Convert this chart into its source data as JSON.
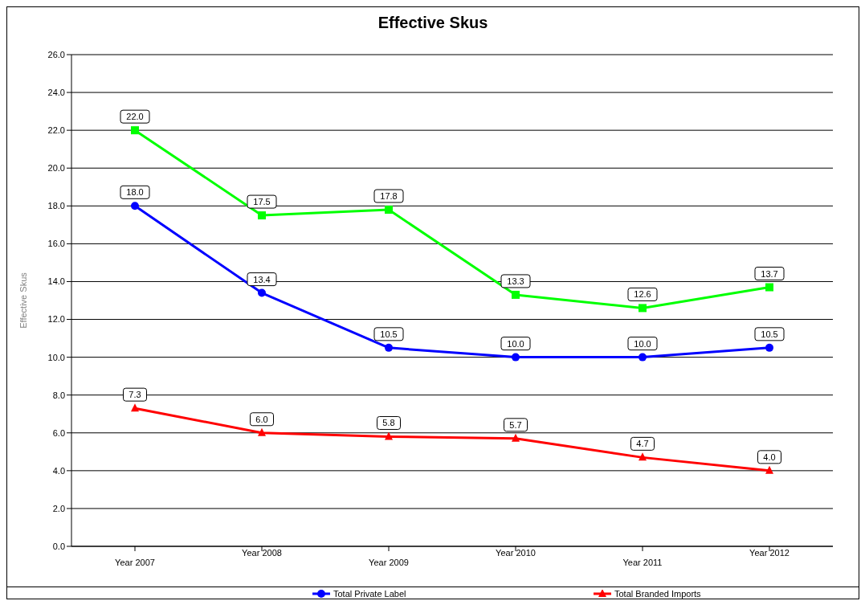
{
  "chart_data": {
    "type": "line",
    "title": "Effective Skus",
    "ylabel": "Effective Skus",
    "categories": [
      "Year 2007",
      "Year 2008",
      "Year 2009",
      "Year 2010",
      "Year 2011",
      "Year 2012"
    ],
    "series": [
      {
        "color": "#00ff00",
        "marker": "square",
        "values": [
          22.0,
          17.5,
          17.8,
          13.3,
          12.6,
          13.7
        ],
        "value_labels": [
          "22.0",
          "17.5",
          "17.8",
          "13.3",
          "12.6",
          "13.7"
        ]
      },
      {
        "name": "Total Private Label",
        "color": "#0000ff",
        "marker": "circle",
        "values": [
          18.0,
          13.4,
          10.5,
          10.0,
          10.0,
          10.5
        ],
        "value_labels": [
          "18.0",
          "13.4",
          "10.5",
          "10.0",
          "10.0",
          "10.5"
        ]
      },
      {
        "name": "Total Branded Imports",
        "color": "#ff0000",
        "marker": "triangle",
        "values": [
          7.3,
          6.0,
          5.8,
          5.7,
          4.7,
          4.0
        ],
        "value_labels": [
          "7.3",
          "6.0",
          "5.8",
          "5.7",
          "4.7",
          "4.0"
        ]
      }
    ],
    "ylim": [
      0,
      26
    ],
    "yticks": [
      {
        "value": 0,
        "label": "0.0"
      },
      {
        "value": 2,
        "label": "2.0"
      },
      {
        "value": 4,
        "label": "4.0"
      },
      {
        "value": 6,
        "label": "6.0"
      },
      {
        "value": 8,
        "label": "8.0"
      },
      {
        "value": 10,
        "label": "10.0"
      },
      {
        "value": 12,
        "label": "12.0"
      },
      {
        "value": 14,
        "label": "14.0"
      },
      {
        "value": 16,
        "label": "16.0"
      },
      {
        "value": 18,
        "label": "18.0"
      },
      {
        "value": 20,
        "label": "20.0"
      },
      {
        "value": 22,
        "label": "22.0"
      },
      {
        "value": 24,
        "label": "24.0"
      },
      {
        "value": 26,
        "label": "26.0"
      }
    ],
    "grid": "y",
    "legend": "bottom",
    "line_style": "solid"
  }
}
